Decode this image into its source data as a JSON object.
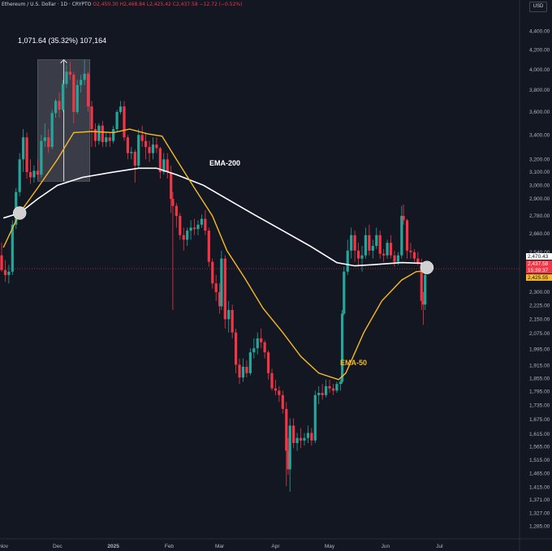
{
  "header": {
    "symbol": "Ethereum / U.S. Dollar · 1D · CRYPTO",
    "ohlc": "O2,450.30 H2,468.84 L2,425.42 C2,437.58 −12.72 (−0.52%)"
  },
  "currency_button": "USD",
  "colors": {
    "background": "#131722",
    "up": "#26a69a",
    "down": "#f23645",
    "ema200": "#ffffff",
    "ema50": "#f7b928",
    "axis_text": "#b2b5be"
  },
  "chart_data": {
    "type": "candlestick",
    "y_scale": "log",
    "ylim": [
      1250,
      4550
    ],
    "yticks": [
      4400,
      4200,
      4000,
      3800,
      3600,
      3400,
      3200,
      3100,
      3000,
      2900,
      2780,
      2660,
      2540,
      2420,
      2300,
      2225,
      2150,
      2075,
      1995,
      1915,
      1855,
      1795,
      1735,
      1675,
      1615,
      1565,
      1515,
      1465,
      1415,
      1371,
      1327,
      1285
    ],
    "xticks": [
      "Nov",
      "Dec",
      "2025",
      "Feb",
      "Mar",
      "Apr",
      "May",
      "Jun",
      "Jul"
    ],
    "price_labels": [
      {
        "text": "2,470.43",
        "kind": "ema200"
      },
      {
        "text": "2,437.58",
        "kind": "last"
      },
      {
        "text": "15:39:37",
        "kind": "countdown"
      },
      {
        "text": "2,425.55",
        "kind": "ema50"
      }
    ],
    "measure": {
      "label": "1,071.64 (35.32%) 107,164",
      "from_price": 3030,
      "to_price": 4100
    },
    "annotations": [
      {
        "text": "EMA-200",
        "series": "EMA-200"
      },
      {
        "text": "EMA-50",
        "series": "EMA-50"
      }
    ],
    "markers": [
      {
        "x": "2024-11-10",
        "price": 2800
      },
      {
        "x": "2025-06-24",
        "price": 2445
      }
    ],
    "ema200": [
      [
        "2024-11-01",
        2765
      ],
      [
        "2024-11-10",
        2800
      ],
      [
        "2024-11-20",
        2900
      ],
      [
        "2024-12-01",
        3000
      ],
      [
        "2024-12-15",
        3060
      ],
      [
        "2025-01-01",
        3100
      ],
      [
        "2025-01-15",
        3130
      ],
      [
        "2025-01-25",
        3130
      ],
      [
        "2025-02-05",
        3080
      ],
      [
        "2025-02-20",
        3000
      ],
      [
        "2025-03-05",
        2900
      ],
      [
        "2025-03-20",
        2790
      ],
      [
        "2025-04-05",
        2680
      ],
      [
        "2025-04-20",
        2580
      ],
      [
        "2025-05-05",
        2475
      ],
      [
        "2025-05-15",
        2455
      ],
      [
        "2025-05-25",
        2462
      ],
      [
        "2025-06-10",
        2475
      ],
      [
        "2025-06-24",
        2470
      ]
    ],
    "ema50": [
      [
        "2024-11-01",
        2570
      ],
      [
        "2024-11-10",
        2800
      ],
      [
        "2024-11-20",
        2980
      ],
      [
        "2024-12-01",
        3200
      ],
      [
        "2024-12-10",
        3420
      ],
      [
        "2024-12-20",
        3430
      ],
      [
        "2025-01-01",
        3420
      ],
      [
        "2025-01-10",
        3450
      ],
      [
        "2025-01-20",
        3410
      ],
      [
        "2025-01-28",
        3390
      ],
      [
        "2025-02-05",
        3200
      ],
      [
        "2025-02-15",
        2980
      ],
      [
        "2025-02-25",
        2780
      ],
      [
        "2025-03-05",
        2550
      ],
      [
        "2025-03-15",
        2380
      ],
      [
        "2025-03-25",
        2210
      ],
      [
        "2025-04-05",
        2080
      ],
      [
        "2025-04-15",
        1960
      ],
      [
        "2025-04-25",
        1880
      ],
      [
        "2025-05-06",
        1850
      ],
      [
        "2025-05-10",
        1880
      ],
      [
        "2025-05-20",
        2080
      ],
      [
        "2025-05-30",
        2250
      ],
      [
        "2025-06-10",
        2370
      ],
      [
        "2025-06-18",
        2420
      ],
      [
        "2025-06-24",
        2425
      ]
    ],
    "candles": [
      [
        "2024-10-31",
        2520,
        2600,
        2420,
        2430
      ],
      [
        "2024-11-02",
        2430,
        2490,
        2360,
        2400
      ],
      [
        "2024-11-04",
        2400,
        2460,
        2350,
        2420
      ],
      [
        "2024-11-06",
        2420,
        2750,
        2400,
        2720
      ],
      [
        "2024-11-08",
        2720,
        2980,
        2690,
        2950
      ],
      [
        "2024-11-10",
        2950,
        3250,
        2920,
        3200
      ],
      [
        "2024-11-12",
        3200,
        3450,
        3100,
        3380
      ],
      [
        "2024-11-14",
        3380,
        3420,
        3050,
        3100
      ],
      [
        "2024-11-16",
        3100,
        3200,
        3010,
        3060
      ],
      [
        "2024-11-18",
        3060,
        3150,
        3020,
        3110
      ],
      [
        "2024-11-20",
        3110,
        3200,
        3050,
        3080
      ],
      [
        "2024-11-22",
        3080,
        3400,
        3060,
        3350
      ],
      [
        "2024-11-24",
        3350,
        3500,
        3300,
        3380
      ],
      [
        "2024-11-26",
        3380,
        3450,
        3250,
        3300
      ],
      [
        "2024-11-28",
        3300,
        3620,
        3280,
        3590
      ],
      [
        "2024-11-30",
        3590,
        3720,
        3550,
        3700
      ],
      [
        "2024-12-02",
        3700,
        3780,
        3550,
        3620
      ],
      [
        "2024-12-04",
        3620,
        3900,
        3600,
        3860
      ],
      [
        "2024-12-06",
        3860,
        4050,
        3820,
        3980
      ],
      [
        "2024-12-08",
        3980,
        4080,
        3900,
        3950
      ],
      [
        "2024-12-10",
        3950,
        3980,
        3500,
        3600
      ],
      [
        "2024-12-12",
        3600,
        3900,
        3580,
        3850
      ],
      [
        "2024-12-14",
        3850,
        3950,
        3780,
        3900
      ],
      [
        "2024-12-16",
        3900,
        4100,
        3850,
        3960
      ],
      [
        "2024-12-18",
        3960,
        3980,
        3600,
        3650
      ],
      [
        "2024-12-20",
        3650,
        3700,
        3300,
        3450
      ],
      [
        "2024-12-22",
        3450,
        3500,
        3300,
        3350
      ],
      [
        "2024-12-24",
        3350,
        3500,
        3320,
        3480
      ],
      [
        "2024-12-26",
        3480,
        3520,
        3300,
        3340
      ],
      [
        "2024-12-28",
        3340,
        3420,
        3300,
        3380
      ],
      [
        "2024-12-30",
        3380,
        3420,
        3300,
        3350
      ],
      [
        "2025-01-01",
        3350,
        3480,
        3330,
        3450
      ],
      [
        "2025-01-03",
        3450,
        3620,
        3420,
        3600
      ],
      [
        "2025-01-05",
        3600,
        3700,
        3580,
        3650
      ],
      [
        "2025-01-07",
        3650,
        3700,
        3350,
        3380
      ],
      [
        "2025-01-09",
        3380,
        3400,
        3200,
        3250
      ],
      [
        "2025-01-11",
        3250,
        3300,
        3200,
        3260
      ],
      [
        "2025-01-13",
        3260,
        3280,
        3020,
        3150
      ],
      [
        "2025-01-15",
        3150,
        3450,
        3130,
        3400
      ],
      [
        "2025-01-17",
        3400,
        3480,
        3300,
        3350
      ],
      [
        "2025-01-19",
        3350,
        3420,
        3200,
        3300
      ],
      [
        "2025-01-21",
        3300,
        3350,
        3180,
        3250
      ],
      [
        "2025-01-23",
        3250,
        3380,
        3200,
        3320
      ],
      [
        "2025-01-25",
        3320,
        3380,
        3250,
        3290
      ],
      [
        "2025-01-27",
        3290,
        3300,
        3050,
        3100
      ],
      [
        "2025-01-29",
        3100,
        3250,
        3080,
        3200
      ],
      [
        "2025-01-31",
        3200,
        3250,
        3050,
        3100
      ],
      [
        "2025-02-02",
        3100,
        3150,
        2800,
        2900
      ],
      [
        "2025-02-03",
        2900,
        2950,
        2200,
        2850
      ],
      [
        "2025-02-05",
        2850,
        2870,
        2700,
        2780
      ],
      [
        "2025-02-07",
        2780,
        2800,
        2620,
        2650
      ],
      [
        "2025-02-09",
        2650,
        2700,
        2550,
        2620
      ],
      [
        "2025-02-11",
        2620,
        2700,
        2580,
        2680
      ],
      [
        "2025-02-13",
        2680,
        2750,
        2620,
        2700
      ],
      [
        "2025-02-15",
        2700,
        2760,
        2650,
        2690
      ],
      [
        "2025-02-17",
        2690,
        2750,
        2650,
        2720
      ],
      [
        "2025-02-19",
        2720,
        2790,
        2700,
        2760
      ],
      [
        "2025-02-21",
        2760,
        2820,
        2650,
        2680
      ],
      [
        "2025-02-23",
        2680,
        2700,
        2450,
        2480
      ],
      [
        "2025-02-25",
        2480,
        2500,
        2320,
        2350
      ],
      [
        "2025-02-27",
        2350,
        2400,
        2250,
        2300
      ],
      [
        "2025-03-01",
        2300,
        2350,
        2180,
        2220
      ],
      [
        "2025-03-02",
        2220,
        2550,
        2200,
        2500
      ],
      [
        "2025-03-04",
        2500,
        2520,
        2100,
        2150
      ],
      [
        "2025-03-06",
        2150,
        2250,
        2080,
        2200
      ],
      [
        "2025-03-08",
        2200,
        2230,
        2050,
        2080
      ],
      [
        "2025-03-10",
        2080,
        2100,
        1880,
        1920
      ],
      [
        "2025-03-12",
        1920,
        1950,
        1830,
        1860
      ],
      [
        "2025-03-14",
        1860,
        1950,
        1840,
        1910
      ],
      [
        "2025-03-16",
        1910,
        1940,
        1860,
        1880
      ],
      [
        "2025-03-18",
        1880,
        2000,
        1870,
        1980
      ],
      [
        "2025-03-20",
        1980,
        2050,
        1950,
        2000
      ],
      [
        "2025-03-22",
        2000,
        2080,
        1970,
        2050
      ],
      [
        "2025-03-24",
        2050,
        2100,
        2000,
        2030
      ],
      [
        "2025-03-26",
        2030,
        2040,
        1950,
        1980
      ],
      [
        "2025-03-28",
        1980,
        1990,
        1850,
        1880
      ],
      [
        "2025-03-30",
        1880,
        1900,
        1800,
        1810
      ],
      [
        "2025-04-01",
        1810,
        1850,
        1780,
        1800
      ],
      [
        "2025-04-03",
        1800,
        1820,
        1750,
        1780
      ],
      [
        "2025-04-05",
        1780,
        1800,
        1700,
        1720
      ],
      [
        "2025-04-07",
        1720,
        1750,
        1420,
        1550
      ],
      [
        "2025-04-08",
        1550,
        1600,
        1460,
        1480
      ],
      [
        "2025-04-09",
        1480,
        1680,
        1400,
        1650
      ],
      [
        "2025-04-11",
        1650,
        1680,
        1560,
        1580
      ],
      [
        "2025-04-13",
        1580,
        1620,
        1550,
        1600
      ],
      [
        "2025-04-15",
        1600,
        1640,
        1560,
        1590
      ],
      [
        "2025-04-17",
        1590,
        1620,
        1570,
        1600
      ],
      [
        "2025-04-19",
        1600,
        1650,
        1580,
        1620
      ],
      [
        "2025-04-21",
        1620,
        1640,
        1570,
        1590
      ],
      [
        "2025-04-23",
        1590,
        1800,
        1580,
        1780
      ],
      [
        "2025-04-25",
        1780,
        1820,
        1740,
        1790
      ],
      [
        "2025-04-27",
        1790,
        1830,
        1760,
        1780
      ],
      [
        "2025-04-29",
        1780,
        1850,
        1770,
        1820
      ],
      [
        "2025-05-01",
        1820,
        1850,
        1790,
        1810
      ],
      [
        "2025-05-03",
        1810,
        1830,
        1780,
        1800
      ],
      [
        "2025-05-05",
        1800,
        1840,
        1790,
        1830
      ],
      [
        "2025-05-07",
        1830,
        1850,
        1800,
        1840
      ],
      [
        "2025-05-08",
        1840,
        2200,
        1830,
        2180
      ],
      [
        "2025-05-09",
        2180,
        2450,
        2170,
        2420
      ],
      [
        "2025-05-11",
        2420,
        2620,
        2400,
        2550
      ],
      [
        "2025-05-13",
        2550,
        2700,
        2500,
        2650
      ],
      [
        "2025-05-15",
        2650,
        2680,
        2480,
        2550
      ],
      [
        "2025-05-17",
        2550,
        2600,
        2450,
        2500
      ],
      [
        "2025-05-19",
        2500,
        2580,
        2420,
        2520
      ],
      [
        "2025-05-21",
        2520,
        2700,
        2500,
        2650
      ],
      [
        "2025-05-23",
        2650,
        2720,
        2520,
        2550
      ],
      [
        "2025-05-25",
        2550,
        2620,
        2500,
        2580
      ],
      [
        "2025-05-27",
        2580,
        2700,
        2560,
        2650
      ],
      [
        "2025-05-29",
        2650,
        2680,
        2500,
        2530
      ],
      [
        "2025-05-31",
        2530,
        2560,
        2480,
        2520
      ],
      [
        "2025-06-02",
        2520,
        2620,
        2500,
        2600
      ],
      [
        "2025-06-04",
        2600,
        2650,
        2500,
        2520
      ],
      [
        "2025-06-06",
        2520,
        2550,
        2450,
        2480
      ],
      [
        "2025-06-08",
        2480,
        2540,
        2460,
        2520
      ],
      [
        "2025-06-10",
        2520,
        2850,
        2500,
        2780
      ],
      [
        "2025-06-11",
        2780,
        2860,
        2720,
        2750
      ],
      [
        "2025-06-13",
        2750,
        2760,
        2500,
        2550
      ],
      [
        "2025-06-15",
        2550,
        2600,
        2500,
        2540
      ],
      [
        "2025-06-17",
        2540,
        2560,
        2480,
        2500
      ],
      [
        "2025-06-19",
        2500,
        2540,
        2460,
        2470
      ],
      [
        "2025-06-21",
        2470,
        2500,
        2200,
        2250
      ],
      [
        "2025-06-22",
        2250,
        2300,
        2120,
        2230
      ],
      [
        "2025-06-23",
        2230,
        2420,
        2200,
        2400
      ],
      [
        "2025-06-24",
        2450,
        2469,
        2425,
        2438
      ]
    ]
  }
}
